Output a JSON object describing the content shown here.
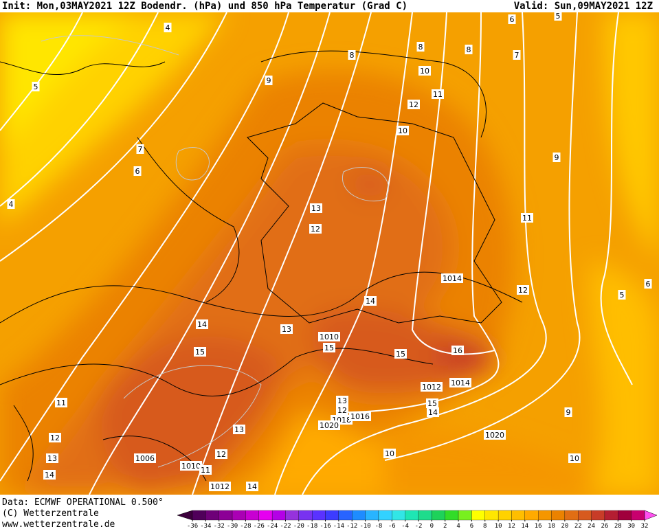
{
  "header": {
    "left": "Init: Mon,03MAY2021 12Z  Bodendr. (hPa) und 850 hPa Temperatur (Grad C)",
    "right": "Valid: Sun,09MAY2021 12Z"
  },
  "footer": {
    "lines": [
      "Data: ECMWF OPERATIONAL 0.500°",
      "(C) Wetterzentrale",
      "www.wetterzentrale.de"
    ]
  },
  "colorbar": {
    "ticks": [
      -36,
      -34,
      -32,
      -30,
      -28,
      -26,
      -24,
      -22,
      -20,
      -18,
      -16,
      -14,
      -12,
      -10,
      -8,
      -6,
      -4,
      -2,
      0,
      2,
      4,
      6,
      8,
      10,
      12,
      14,
      16,
      18,
      20,
      22,
      24,
      26,
      28,
      30,
      32
    ],
    "colors": [
      "#3c003c",
      "#50005a",
      "#6e0078",
      "#8c0096",
      "#aa00b4",
      "#c800d2",
      "#e600f0",
      "#b400e6",
      "#9632dc",
      "#7832f0",
      "#5a32ff",
      "#3c3cff",
      "#2864ff",
      "#1e8cff",
      "#28b4ff",
      "#32d2ff",
      "#32e6e6",
      "#1ee6b4",
      "#1edc8c",
      "#1ed25a",
      "#32dc28",
      "#78f01e",
      "#ffff00",
      "#ffe600",
      "#ffd200",
      "#ffbe00",
      "#ffaa00",
      "#f59600",
      "#eb8200",
      "#e16e14",
      "#d75a1e",
      "#c83c28",
      "#b41e32",
      "#a0003c",
      "#c8006e",
      "#f000a0",
      "#ff50f0"
    ]
  },
  "labels": [
    "4",
    "5",
    "6",
    "5",
    "8",
    "8",
    "8",
    "7",
    "10",
    "9",
    "11",
    "12",
    "10",
    "7",
    "6",
    "9",
    "4",
    "13",
    "12",
    "11",
    "1014",
    "12",
    "6",
    "5",
    "14",
    "13",
    "14",
    "1010",
    "15",
    "15",
    "15",
    "16",
    "1012",
    "1014",
    "15",
    "14",
    "13",
    "12",
    "1018",
    "1016",
    "1020",
    "11",
    "9",
    "1020",
    "12",
    "13",
    "10",
    "12",
    "13",
    "1006",
    "10",
    "1010",
    "11",
    "14",
    "1012",
    "14"
  ]
}
